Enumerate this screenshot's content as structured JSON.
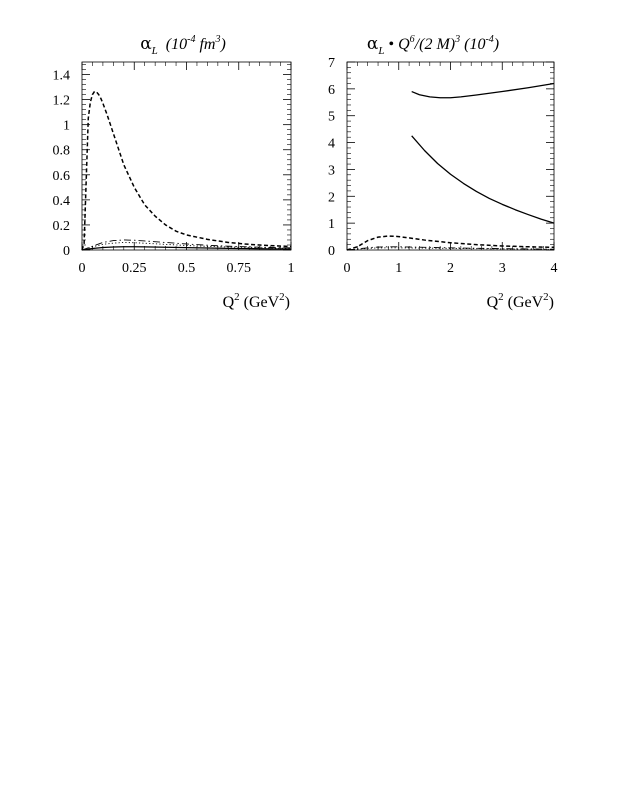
{
  "chart_data": [
    {
      "type": "line",
      "title": "αL (10-4 fm3)",
      "title_parts": {
        "symbol": "α",
        "subscript": "L",
        "text_a": "(10",
        "exp_a": "-4",
        "text_b": " fm",
        "exp_b": "3",
        "close": ")"
      },
      "xlabel": "Q2 (GeV2)",
      "xlabel_parts": {
        "var": "Q",
        "var_exp": "2",
        "unit_open": "(GeV",
        "unit_exp": "2",
        "unit_close": ")"
      },
      "ylabel": "",
      "xlim": [
        0,
        1
      ],
      "ylim": [
        0,
        1.5
      ],
      "xticks": [
        0,
        0.25,
        0.5,
        0.75,
        1
      ],
      "xtick_labels": [
        "0",
        "0.25",
        "0.5",
        "0.75",
        "1"
      ],
      "yticks": [
        0,
        0.2,
        0.4,
        0.6,
        0.8,
        1,
        1.2,
        1.4
      ],
      "ytick_labels": [
        "0",
        "0.2",
        "0.4",
        "0.6",
        "0.8",
        "1",
        "1.2",
        "1.4"
      ],
      "grid": false,
      "series": [
        {
          "style": "dashed",
          "x": [
            0,
            0.01,
            0.02,
            0.03,
            0.04,
            0.05,
            0.06,
            0.07,
            0.08,
            0.09,
            0.1,
            0.12,
            0.14,
            0.16,
            0.18,
            0.2,
            0.25,
            0.3,
            0.35,
            0.4,
            0.45,
            0.5,
            0.6,
            0.7,
            0.8,
            0.9,
            1.0
          ],
          "y": [
            0,
            0.05,
            0.55,
            1.05,
            1.18,
            1.24,
            1.265,
            1.26,
            1.24,
            1.21,
            1.17,
            1.08,
            0.98,
            0.88,
            0.78,
            0.68,
            0.5,
            0.36,
            0.27,
            0.2,
            0.15,
            0.12,
            0.085,
            0.06,
            0.045,
            0.035,
            0.028
          ]
        },
        {
          "style": "dashdot",
          "x": [
            0,
            0.05,
            0.1,
            0.15,
            0.2,
            0.25,
            0.3,
            0.4,
            0.5,
            0.6,
            0.7,
            0.8,
            0.9,
            1.0
          ],
          "y": [
            0,
            0.03,
            0.06,
            0.075,
            0.08,
            0.078,
            0.072,
            0.06,
            0.048,
            0.038,
            0.03,
            0.025,
            0.02,
            0.017
          ]
        },
        {
          "style": "dotted",
          "x": [
            0,
            0.05,
            0.1,
            0.15,
            0.2,
            0.25,
            0.3,
            0.4,
            0.5,
            0.6,
            0.7,
            0.8,
            0.9,
            1.0
          ],
          "y": [
            0,
            0.025,
            0.045,
            0.055,
            0.06,
            0.058,
            0.054,
            0.045,
            0.036,
            0.029,
            0.024,
            0.02,
            0.016,
            0.013
          ]
        },
        {
          "style": "solid",
          "x": [
            0,
            0.05,
            0.1,
            0.15,
            0.2,
            0.25,
            0.3,
            0.4,
            0.5,
            0.6,
            0.7,
            0.8,
            0.9,
            1.0
          ],
          "y": [
            0,
            0.012,
            0.02,
            0.024,
            0.026,
            0.026,
            0.025,
            0.022,
            0.019,
            0.016,
            0.013,
            0.011,
            0.009,
            0.008
          ]
        }
      ]
    },
    {
      "type": "line",
      "title": "αL • Q6/(2 M)3 (10-4)",
      "title_parts": {
        "symbol": "α",
        "subscript": "L",
        "bullet": " • ",
        "text_a": "Q",
        "exp_a": "6",
        "text_b": "/(2 M)",
        "exp_b": "3",
        "text_c": "  (10",
        "exp_c": "-4",
        "close": ")"
      },
      "xlabel": "Q2 (GeV2)",
      "xlabel_parts": {
        "var": "Q",
        "var_exp": "2",
        "unit_open": "(GeV",
        "unit_exp": "2",
        "unit_close": ")"
      },
      "ylabel": "",
      "xlim": [
        0,
        4
      ],
      "ylim": [
        0,
        7
      ],
      "xticks": [
        0,
        1,
        2,
        3,
        4
      ],
      "xtick_labels": [
        "0",
        "1",
        "2",
        "3",
        "4"
      ],
      "yticks": [
        0,
        1,
        2,
        3,
        4,
        5,
        6,
        7
      ],
      "ytick_labels": [
        "0",
        "1",
        "2",
        "3",
        "4",
        "5",
        "6",
        "7"
      ],
      "grid": false,
      "series": [
        {
          "style": "solid",
          "x": [
            1.25,
            1.4,
            1.6,
            1.8,
            2.0,
            2.2,
            2.5,
            3.0,
            3.5,
            4.0
          ],
          "y": [
            5.9,
            5.78,
            5.7,
            5.67,
            5.67,
            5.7,
            5.77,
            5.9,
            6.04,
            6.2
          ]
        },
        {
          "style": "solid",
          "x": [
            1.25,
            1.5,
            1.75,
            2.0,
            2.25,
            2.5,
            2.75,
            3.0,
            3.25,
            3.5,
            3.75,
            4.0
          ],
          "y": [
            4.25,
            3.7,
            3.22,
            2.82,
            2.48,
            2.18,
            1.92,
            1.7,
            1.5,
            1.32,
            1.15,
            1.0
          ]
        },
        {
          "style": "dashed",
          "x": [
            0,
            0.2,
            0.4,
            0.6,
            0.8,
            1.0,
            1.2,
            1.5,
            2.0,
            2.5,
            3.0,
            3.5,
            4.0
          ],
          "y": [
            0,
            0.12,
            0.35,
            0.48,
            0.52,
            0.5,
            0.45,
            0.37,
            0.27,
            0.2,
            0.15,
            0.12,
            0.1
          ]
        },
        {
          "style": "dashdot",
          "x": [
            0,
            0.25,
            0.5,
            0.75,
            1.0,
            1.5,
            2.0,
            2.5,
            3.0,
            3.5,
            4.0
          ],
          "y": [
            0,
            0.05,
            0.1,
            0.12,
            0.12,
            0.1,
            0.08,
            0.065,
            0.05,
            0.04,
            0.03
          ]
        },
        {
          "style": "dotted",
          "x": [
            0,
            0.25,
            0.5,
            0.75,
            1.0,
            1.5,
            2.0,
            2.5,
            3.0,
            3.5,
            4.0
          ],
          "y": [
            0,
            0.04,
            0.07,
            0.08,
            0.08,
            0.07,
            0.06,
            0.05,
            0.04,
            0.03,
            0.025
          ]
        }
      ]
    }
  ]
}
